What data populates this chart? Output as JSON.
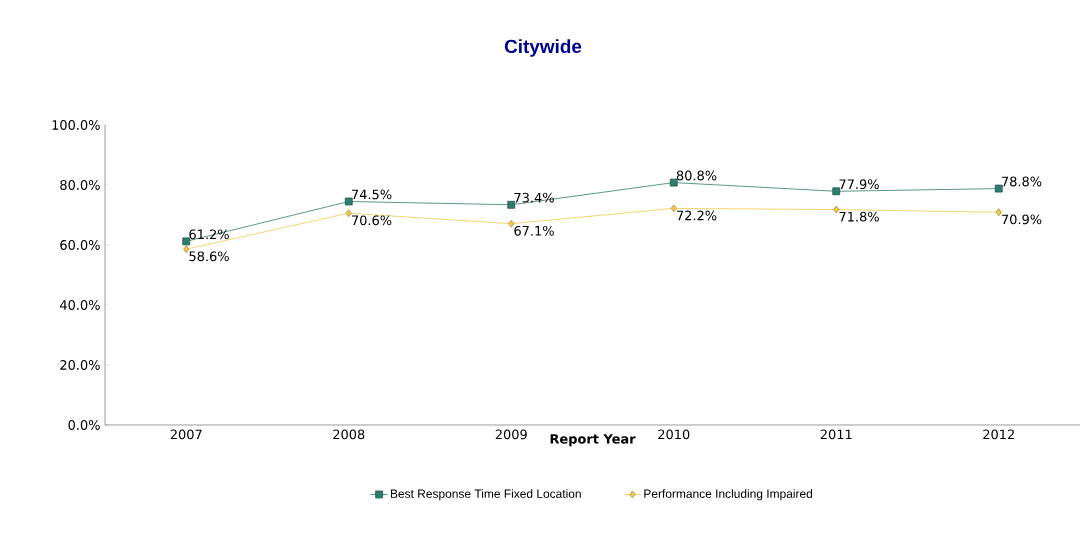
{
  "chart_data": {
    "type": "line",
    "title": "Citywide",
    "xlabel": "Report Year",
    "categories": [
      "2007",
      "2008",
      "2009",
      "2010",
      "2011",
      "2012"
    ],
    "series": [
      {
        "name": "Best Response Time Fixed Location",
        "color": "#2f7d6d",
        "marker": "square",
        "values": [
          61.2,
          74.5,
          73.4,
          80.8,
          77.9,
          78.8
        ],
        "value_labels": [
          "61.2%",
          "74.5%",
          "73.4%",
          "80.8%",
          "77.9%",
          "78.8%"
        ]
      },
      {
        "name": "Performance Including Impaired",
        "color": "#f2c94c",
        "marker": "diamond",
        "values": [
          58.6,
          70.6,
          67.1,
          72.2,
          71.8,
          70.9
        ],
        "value_labels": [
          "58.6%",
          "70.6%",
          "67.1%",
          "72.2%",
          "71.8%",
          "70.9%"
        ]
      }
    ],
    "ylim": [
      0,
      100
    ],
    "yticks": [
      {
        "value": 0,
        "label": "0.0%"
      },
      {
        "value": 20,
        "label": "20.0%"
      },
      {
        "value": 40,
        "label": "40.0%"
      },
      {
        "value": 60,
        "label": "60.0%"
      },
      {
        "value": 80,
        "label": "80.0%"
      },
      {
        "value": 100,
        "label": "100.0%"
      }
    ],
    "grid": false,
    "legend": "bottom"
  }
}
